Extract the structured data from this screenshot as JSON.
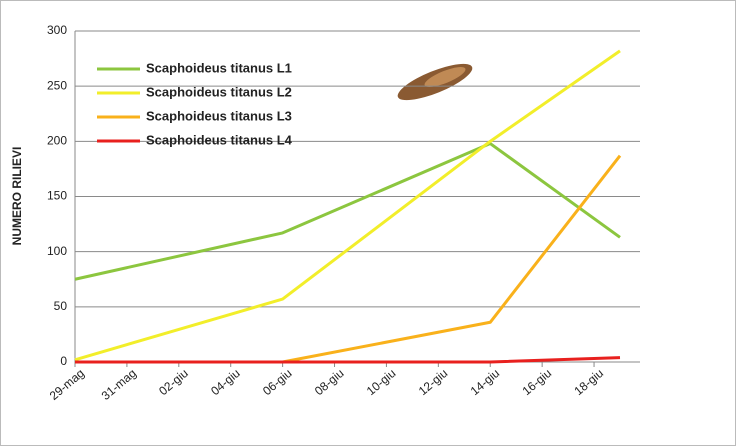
{
  "chart_data": {
    "type": "line",
    "y_label": "NUMERO RILIEVI",
    "categories": [
      "29-mag",
      null,
      "31-mag",
      null,
      "02-giu",
      null,
      "04-giu",
      null,
      "06-giu",
      null,
      "08-giu",
      null,
      "10-giu",
      null,
      "12-giu",
      null,
      "14-giu",
      null,
      "16-giu",
      null,
      "18-giu",
      null
    ],
    "series": [
      {
        "name": "Scaphoideus titanus L1",
        "color": "#8cc63f",
        "values": [
          75,
          null,
          null,
          null,
          null,
          null,
          null,
          null,
          117,
          null,
          null,
          null,
          null,
          null,
          null,
          null,
          198,
          null,
          null,
          null,
          null,
          113
        ]
      },
      {
        "name": "Scaphoideus titanus L2",
        "color": "#f2ee2a",
        "values": [
          2,
          null,
          null,
          null,
          null,
          null,
          null,
          null,
          57,
          null,
          null,
          null,
          null,
          null,
          null,
          null,
          200,
          null,
          null,
          null,
          null,
          282
        ]
      },
      {
        "name": "Scaphoideus titanus L3",
        "color": "#f9b11b",
        "values": [
          0,
          null,
          null,
          null,
          null,
          null,
          null,
          null,
          0,
          null,
          null,
          null,
          null,
          null,
          null,
          null,
          36,
          null,
          null,
          null,
          null,
          187
        ]
      },
      {
        "name": "Scaphoideus titanus L4",
        "color": "#e8201e",
        "values": [
          0,
          null,
          null,
          null,
          null,
          null,
          null,
          null,
          0,
          null,
          null,
          null,
          null,
          null,
          null,
          null,
          0,
          null,
          null,
          null,
          null,
          4
        ]
      }
    ],
    "ylim": [
      0,
      300
    ],
    "yticks": [
      0,
      50,
      100,
      150,
      200,
      250,
      300
    ],
    "grid": true
  }
}
